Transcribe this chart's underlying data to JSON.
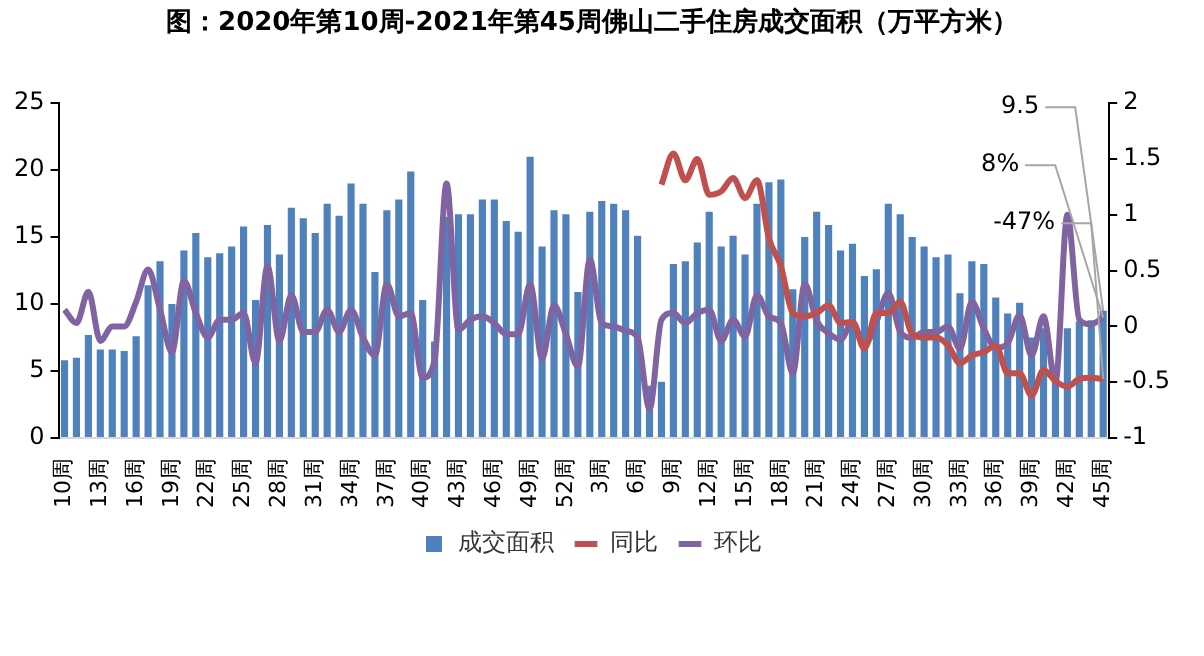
{
  "chart_data": {
    "type": "bar",
    "title": "图：2020年第10周-2021年第45周佛山二手住房成交面积（万平方米）",
    "categories": [
      "10周",
      null,
      null,
      "13周",
      null,
      null,
      "16周",
      null,
      null,
      "19周",
      null,
      null,
      "22周",
      null,
      null,
      "25周",
      null,
      null,
      "28周",
      null,
      null,
      "31周",
      null,
      null,
      "34周",
      null,
      null,
      "37周",
      null,
      null,
      "40周",
      null,
      null,
      "43周",
      null,
      null,
      "46周",
      null,
      null,
      "49周",
      null,
      null,
      "52周",
      null,
      null,
      "3周",
      null,
      null,
      "6周",
      null,
      null,
      "9周",
      null,
      null,
      "12周",
      null,
      null,
      "15周",
      null,
      null,
      "18周",
      null,
      null,
      "21周",
      null,
      null,
      "24周",
      null,
      null,
      "27周",
      null,
      null,
      "30周",
      null,
      null,
      "33周",
      null,
      null,
      "36周",
      null,
      null,
      "39周",
      null,
      null,
      "42周",
      null,
      null,
      "45周"
    ],
    "series": [
      {
        "name": "成交面积",
        "color": "#4f81bd",
        "values": [
          5.8,
          6.0,
          7.7,
          6.6,
          6.6,
          6.5,
          7.6,
          11.4,
          13.2,
          10.0,
          14.0,
          15.3,
          13.5,
          13.8,
          14.3,
          15.8,
          10.3,
          15.9,
          13.7,
          17.2,
          16.4,
          15.3,
          17.5,
          16.6,
          19.0,
          17.5,
          12.4,
          17.0,
          17.8,
          19.9,
          10.3,
          7.2,
          16.5,
          16.7,
          16.7,
          17.8,
          17.8,
          16.2,
          15.4,
          21.0,
          14.3,
          17.0,
          16.7,
          10.9,
          16.9,
          17.7,
          17.5,
          17.0,
          15.1,
          3.9,
          4.2,
          13.0,
          13.2,
          14.6,
          16.9,
          14.3,
          15.1,
          13.7,
          17.5,
          19.1,
          19.3,
          11.1,
          15.0,
          16.9,
          15.9,
          14.0,
          14.5,
          12.1,
          12.6,
          17.5,
          16.7,
          15.0,
          14.3,
          13.5,
          13.7,
          10.8,
          13.2,
          13.0,
          10.5,
          9.3,
          10.1,
          7.5,
          8.2,
          4.1,
          8.2,
          8.7,
          8.8,
          9.5
        ],
        "value_labels": [
          null,
          null,
          null,
          null,
          null,
          null,
          null,
          null,
          null,
          null,
          null,
          null,
          null,
          null,
          null,
          null,
          null,
          null,
          null,
          null,
          null,
          null,
          null,
          null,
          null,
          null,
          null,
          null,
          null,
          null,
          null,
          null,
          null,
          null,
          null,
          null,
          null,
          null,
          null,
          null,
          null,
          null,
          null,
          null,
          null,
          null,
          null,
          null,
          null,
          null,
          null,
          null,
          null,
          null,
          null,
          null,
          null,
          null,
          null,
          null,
          null,
          null,
          null,
          null,
          null,
          null,
          null,
          null,
          null,
          null,
          null,
          null,
          null,
          null,
          null,
          null,
          null,
          null,
          null,
          null,
          null,
          null,
          null,
          null,
          null,
          null,
          null,
          "9.5"
        ]
      },
      {
        "name": "同比",
        "type": "line",
        "axis": "y2",
        "color": "#c0504d",
        "values": [
          null,
          null,
          null,
          null,
          null,
          null,
          null,
          null,
          null,
          null,
          null,
          null,
          null,
          null,
          null,
          null,
          null,
          null,
          null,
          null,
          null,
          null,
          null,
          null,
          null,
          null,
          null,
          null,
          null,
          null,
          null,
          null,
          null,
          null,
          null,
          null,
          null,
          null,
          null,
          null,
          null,
          null,
          null,
          null,
          null,
          null,
          null,
          null,
          null,
          null,
          1.27,
          1.55,
          1.31,
          1.5,
          1.18,
          1.21,
          1.33,
          1.15,
          1.31,
          0.79,
          0.54,
          0.12,
          0.09,
          0.12,
          0.19,
          0.03,
          0.04,
          -0.2,
          0.12,
          0.12,
          0.22,
          -0.07,
          -0.1,
          -0.1,
          -0.17,
          -0.33,
          -0.26,
          -0.23,
          -0.17,
          -0.42,
          -0.42,
          -0.62,
          -0.39,
          -0.49,
          -0.54,
          -0.47,
          -0.46,
          -0.47
        ],
        "value_labels": [
          null,
          null,
          null,
          null,
          null,
          null,
          null,
          null,
          null,
          null,
          null,
          null,
          null,
          null,
          null,
          null,
          null,
          null,
          null,
          null,
          null,
          null,
          null,
          null,
          null,
          null,
          null,
          null,
          null,
          null,
          null,
          null,
          null,
          null,
          null,
          null,
          null,
          null,
          null,
          null,
          null,
          null,
          null,
          null,
          null,
          null,
          null,
          null,
          null,
          null,
          null,
          null,
          null,
          null,
          null,
          null,
          null,
          null,
          null,
          null,
          null,
          null,
          null,
          null,
          null,
          null,
          null,
          null,
          null,
          null,
          null,
          null,
          null,
          null,
          null,
          null,
          null,
          null,
          null,
          null,
          null,
          null,
          null,
          null,
          null,
          null,
          null,
          "-47%"
        ]
      },
      {
        "name": "环比",
        "type": "line",
        "axis": "y2",
        "color": "#8064a2",
        "values": [
          0.15,
          0.03,
          0.31,
          -0.13,
          0.0,
          0.0,
          0.22,
          0.51,
          0.15,
          -0.23,
          0.41,
          0.12,
          -0.1,
          0.06,
          0.06,
          0.12,
          -0.33,
          0.54,
          -0.13,
          0.28,
          -0.05,
          -0.05,
          0.15,
          -0.05,
          0.15,
          -0.1,
          -0.26,
          0.38,
          0.09,
          0.12,
          -0.46,
          -0.3,
          1.28,
          -0.03,
          0.06,
          0.09,
          0.03,
          -0.07,
          -0.07,
          0.38,
          -0.29,
          0.19,
          -0.07,
          -0.36,
          0.6,
          0.03,
          0.0,
          -0.04,
          -0.1,
          -0.74,
          0.06,
          0.12,
          0.03,
          0.12,
          0.15,
          -0.13,
          0.06,
          -0.09,
          0.28,
          0.09,
          0.03,
          -0.42,
          0.38,
          0.05,
          -0.06,
          -0.12,
          0.04,
          -0.17,
          0.04,
          0.3,
          -0.05,
          -0.1,
          -0.05,
          -0.05,
          0.0,
          -0.2,
          0.22,
          -0.02,
          -0.19,
          -0.15,
          0.1,
          -0.26,
          0.09,
          -0.5,
          1.0,
          0.06,
          0.02,
          0.08
        ],
        "value_labels": [
          null,
          null,
          null,
          null,
          null,
          null,
          null,
          null,
          null,
          null,
          null,
          null,
          null,
          null,
          null,
          null,
          null,
          null,
          null,
          null,
          null,
          null,
          null,
          null,
          null,
          null,
          null,
          null,
          null,
          null,
          null,
          null,
          null,
          null,
          null,
          null,
          null,
          null,
          null,
          null,
          null,
          null,
          null,
          null,
          null,
          null,
          null,
          null,
          null,
          null,
          null,
          null,
          null,
          null,
          null,
          null,
          null,
          null,
          null,
          null,
          null,
          null,
          null,
          null,
          null,
          null,
          null,
          null,
          null,
          null,
          null,
          null,
          null,
          null,
          null,
          null,
          null,
          null,
          null,
          null,
          null,
          null,
          null,
          null,
          null,
          null,
          null,
          "8%"
        ]
      }
    ],
    "ylim": [
      0,
      25
    ],
    "yticks": [
      0,
      5,
      10,
      15,
      20,
      25
    ],
    "y2lim": [
      -1,
      2
    ],
    "y2ticks": [
      -1,
      -0.5,
      0,
      0.5,
      1,
      1.5,
      2
    ],
    "legend": "bottom",
    "marker": "none",
    "line_style": "solid"
  }
}
